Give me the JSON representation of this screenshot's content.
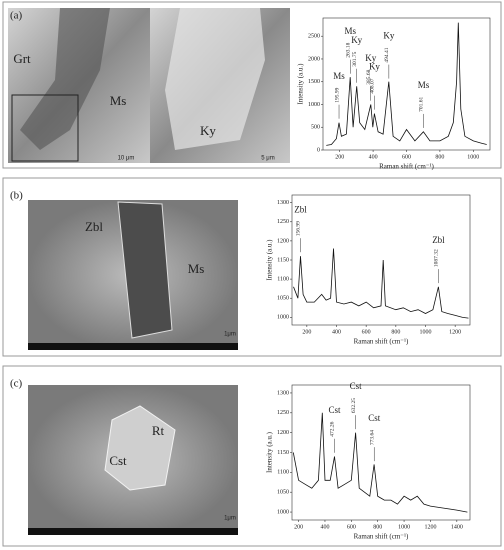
{
  "figure": {
    "panels": [
      {
        "label": "(a)",
        "image_texts": [
          "Grt",
          "Ms",
          "Ky",
          "10 μm",
          "5 μm"
        ]
      },
      {
        "label": "(b)",
        "image_texts": [
          "Zbl",
          "Ms",
          "1μm"
        ]
      },
      {
        "label": "(c)",
        "image_texts": [
          "Rt",
          "Cst",
          "1μm"
        ]
      }
    ]
  },
  "chart_data": [
    {
      "type": "line",
      "x_label": "Raman shift (cm⁻¹)",
      "y_label": "Intensity (a.u.)",
      "color": "#111",
      "x": [
        120,
        150,
        180,
        196,
        210,
        240,
        263,
        280,
        302,
        320,
        350,
        386,
        398,
        408,
        430,
        460,
        494,
        520,
        560,
        600,
        650,
        701,
        740,
        800,
        850,
        880,
        900,
        910,
        925,
        950,
        1000,
        1050,
        1080
      ],
      "values": [
        100,
        120,
        250,
        600,
        300,
        350,
        1600,
        500,
        1400,
        600,
        450,
        1000,
        500,
        800,
        400,
        350,
        1500,
        300,
        200,
        450,
        200,
        400,
        200,
        200,
        300,
        600,
        1500,
        2800,
        900,
        300,
        200,
        150,
        120
      ],
      "xlim": [
        100,
        1100
      ],
      "xticks": [
        200,
        400,
        600,
        800,
        1000
      ],
      "ylim": [
        0,
        2900
      ],
      "yticks": [
        0,
        500,
        1000,
        1500,
        2000,
        2500
      ],
      "annotations": [
        {
          "label": "Ms",
          "value": 195.99
        },
        {
          "label": "Ms",
          "value": 263.18
        },
        {
          "label": "Ky",
          "value": 301.75
        },
        {
          "label": "Ky",
          "value": 385.68
        },
        {
          "label": "Ky",
          "value": 408.07
        },
        {
          "label": "Ky",
          "value": 494.41
        },
        {
          "label": "Ms",
          "value": 701.61
        }
      ]
    },
    {
      "type": "line",
      "x_label": "Raman shift (cm⁻¹)",
      "y_label": "Intensity (a.u.)",
      "color": "#111",
      "x": [
        110,
        140,
        157,
        175,
        200,
        250,
        300,
        330,
        360,
        380,
        400,
        450,
        500,
        550,
        600,
        650,
        700,
        715,
        730,
        800,
        850,
        900,
        950,
        1000,
        1050,
        1087,
        1110,
        1150,
        1200,
        1250,
        1290
      ],
      "values": [
        1080,
        1050,
        1160,
        1060,
        1040,
        1040,
        1060,
        1045,
        1050,
        1180,
        1040,
        1035,
        1040,
        1030,
        1040,
        1025,
        1030,
        1150,
        1030,
        1020,
        1025,
        1015,
        1020,
        1010,
        1020,
        1080,
        1015,
        1010,
        1005,
        1000,
        998
      ],
      "xlim": [
        100,
        1300
      ],
      "xticks": [
        200,
        400,
        600,
        800,
        1000,
        1200
      ],
      "ylim": [
        980,
        1320
      ],
      "yticks": [
        1000,
        1050,
        1100,
        1150,
        1200,
        1250,
        1300
      ],
      "annotations": [
        {
          "label": "Zbl",
          "value": 156.99
        },
        {
          "label": "Zbl",
          "value": 1087.32
        }
      ]
    },
    {
      "type": "line",
      "x_label": "Raman shift (cm⁻¹)",
      "y_label": "Intensity (a.u.)",
      "color": "#111",
      "x": [
        160,
        200,
        250,
        300,
        350,
        380,
        400,
        440,
        472,
        500,
        550,
        600,
        632,
        660,
        700,
        740,
        773,
        800,
        850,
        900,
        950,
        1000,
        1050,
        1100,
        1150,
        1200,
        1300,
        1400,
        1480
      ],
      "values": [
        1150,
        1080,
        1070,
        1060,
        1080,
        1250,
        1080,
        1080,
        1140,
        1060,
        1070,
        1080,
        1200,
        1060,
        1050,
        1040,
        1120,
        1040,
        1030,
        1030,
        1020,
        1040,
        1030,
        1040,
        1020,
        1015,
        1010,
        1005,
        1000
      ],
      "xlim": [
        150,
        1500
      ],
      "xticks": [
        200,
        400,
        600,
        800,
        1000,
        1200,
        1400
      ],
      "ylim": [
        980,
        1320
      ],
      "yticks": [
        1000,
        1050,
        1100,
        1150,
        1200,
        1250,
        1300
      ],
      "annotations": [
        {
          "label": "Cst",
          "value": 472.26
        },
        {
          "label": "Cst",
          "value": 632.25
        },
        {
          "label": "Cst",
          "value": 773.64
        }
      ]
    }
  ]
}
